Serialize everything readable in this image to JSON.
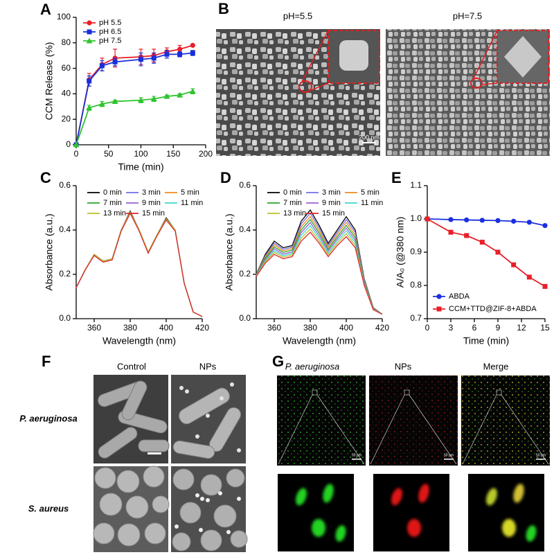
{
  "chart_data": [
    {
      "type": "line",
      "panel": "A",
      "xlabel": "Time (min)",
      "ylabel": "CCM Release (%)",
      "x": [
        0,
        20,
        40,
        60,
        100,
        120,
        140,
        160,
        180
      ],
      "xlim": [
        0,
        200
      ],
      "xticks": [
        0,
        50,
        100,
        150,
        200
      ],
      "ylim": [
        0,
        100
      ],
      "yticks": [
        0,
        20,
        40,
        60,
        80,
        100
      ],
      "legend": "upper left",
      "series": [
        {
          "name": "pH 5.5",
          "color": "#e8202a",
          "marker": "circle",
          "values": [
            0,
            51,
            63,
            68,
            69,
            70,
            73,
            75,
            78
          ],
          "errors": [
            0,
            5,
            5,
            7,
            6,
            5,
            3,
            3,
            0
          ]
        },
        {
          "name": "pH 6.5",
          "color": "#1a2fd8",
          "marker": "square",
          "values": [
            0,
            50,
            62,
            65,
            67,
            68,
            71,
            71,
            72
          ],
          "errors": [
            0,
            4,
            4,
            3,
            5,
            4,
            3,
            2,
            2
          ]
        },
        {
          "name": "pH 7.5",
          "color": "#2fc42f",
          "marker": "triangle",
          "values": [
            0,
            29,
            32,
            34,
            35,
            36,
            38,
            39,
            42
          ],
          "errors": [
            0,
            2,
            2,
            1,
            2,
            2,
            1,
            1,
            2
          ]
        }
      ]
    },
    {
      "type": "line",
      "panel": "C",
      "xlabel": "Wavelength (nm)",
      "ylabel": "Absorbance (a.u.)",
      "x": [
        350,
        355,
        360,
        365,
        370,
        375,
        380,
        385,
        390,
        395,
        400,
        405,
        410,
        415,
        420
      ],
      "xlim": [
        350,
        420
      ],
      "xticks": [
        360,
        380,
        400,
        420
      ],
      "ylim": [
        0,
        0.6
      ],
      "yticks": [
        {
          "value": 0,
          "label": "0.0"
        },
        0.2,
        0.4,
        0.6
      ],
      "legend": "upper center",
      "series": [
        {
          "name": "0 min",
          "color": "#000000",
          "values": [
            0.14,
            0.22,
            0.29,
            0.26,
            0.27,
            0.4,
            0.485,
            0.4,
            0.3,
            0.38,
            0.455,
            0.4,
            0.16,
            0.03,
            0.01
          ]
        },
        {
          "name": "3 min",
          "color": "#6f6fe8",
          "values": [
            0.14,
            0.22,
            0.29,
            0.26,
            0.27,
            0.4,
            0.48,
            0.4,
            0.3,
            0.38,
            0.45,
            0.4,
            0.16,
            0.03,
            0.01
          ]
        },
        {
          "name": "5 min",
          "color": "#f28a1c",
          "values": [
            0.14,
            0.22,
            0.29,
            0.26,
            0.27,
            0.4,
            0.48,
            0.4,
            0.3,
            0.38,
            0.45,
            0.4,
            0.16,
            0.03,
            0.01
          ]
        },
        {
          "name": "7 min",
          "color": "#2aa32a",
          "values": [
            0.14,
            0.22,
            0.29,
            0.26,
            0.27,
            0.4,
            0.48,
            0.4,
            0.3,
            0.38,
            0.45,
            0.4,
            0.16,
            0.03,
            0.01
          ]
        },
        {
          "name": "9 min",
          "color": "#9a5fd0",
          "values": [
            0.14,
            0.22,
            0.29,
            0.26,
            0.27,
            0.4,
            0.48,
            0.4,
            0.3,
            0.38,
            0.45,
            0.4,
            0.16,
            0.03,
            0.01
          ]
        },
        {
          "name": "11 min",
          "color": "#3fd6cf",
          "values": [
            0.14,
            0.22,
            0.29,
            0.26,
            0.27,
            0.4,
            0.48,
            0.4,
            0.3,
            0.38,
            0.45,
            0.4,
            0.16,
            0.03,
            0.01
          ]
        },
        {
          "name": "13 min",
          "color": "#bdbd2a",
          "values": [
            0.14,
            0.22,
            0.29,
            0.26,
            0.27,
            0.4,
            0.48,
            0.4,
            0.3,
            0.38,
            0.45,
            0.4,
            0.16,
            0.03,
            0.01
          ]
        },
        {
          "name": "15 min",
          "color": "#e0262b",
          "values": [
            0.14,
            0.22,
            0.285,
            0.255,
            0.265,
            0.395,
            0.475,
            0.395,
            0.295,
            0.375,
            0.445,
            0.395,
            0.16,
            0.03,
            0.01
          ]
        }
      ]
    },
    {
      "type": "line",
      "panel": "D",
      "xlabel": "Wavelength (nm)",
      "ylabel": "Absorbance (a.u.)",
      "x": [
        350,
        355,
        360,
        365,
        370,
        375,
        380,
        385,
        390,
        395,
        400,
        405,
        410,
        415,
        420
      ],
      "xlim": [
        350,
        420
      ],
      "xticks": [
        360,
        380,
        400,
        420
      ],
      "ylim": [
        0,
        0.6
      ],
      "yticks": [
        {
          "value": 0,
          "label": "0.0"
        },
        0.2,
        0.4,
        0.6
      ],
      "legend": "upper center",
      "series": [
        {
          "name": "0 min",
          "color": "#000000",
          "values": [
            0.2,
            0.29,
            0.35,
            0.32,
            0.33,
            0.44,
            0.49,
            0.42,
            0.34,
            0.4,
            0.46,
            0.4,
            0.18,
            0.05,
            0.02
          ]
        },
        {
          "name": "3 min",
          "color": "#6f6fe8",
          "values": [
            0.199,
            0.284,
            0.341,
            0.313,
            0.323,
            0.427,
            0.476,
            0.409,
            0.331,
            0.39,
            0.447,
            0.389,
            0.176,
            0.049,
            0.02
          ]
        },
        {
          "name": "5 min",
          "color": "#f28a1c",
          "values": [
            0.197,
            0.279,
            0.333,
            0.306,
            0.316,
            0.414,
            0.461,
            0.397,
            0.323,
            0.38,
            0.434,
            0.377,
            0.171,
            0.047,
            0.02
          ]
        },
        {
          "name": "7 min",
          "color": "#2aa32a",
          "values": [
            0.196,
            0.273,
            0.324,
            0.299,
            0.309,
            0.401,
            0.447,
            0.386,
            0.314,
            0.37,
            0.421,
            0.366,
            0.167,
            0.046,
            0.02
          ]
        },
        {
          "name": "9 min",
          "color": "#9a5fd0",
          "values": [
            0.194,
            0.267,
            0.316,
            0.291,
            0.301,
            0.389,
            0.433,
            0.374,
            0.306,
            0.36,
            0.409,
            0.354,
            0.163,
            0.044,
            0.02
          ]
        },
        {
          "name": "11 min",
          "color": "#3fd6cf",
          "values": [
            0.193,
            0.261,
            0.307,
            0.284,
            0.294,
            0.376,
            0.419,
            0.363,
            0.297,
            0.35,
            0.396,
            0.343,
            0.159,
            0.043,
            0.02
          ]
        },
        {
          "name": "13 min",
          "color": "#bdbd2a",
          "values": [
            0.191,
            0.256,
            0.299,
            0.277,
            0.287,
            0.363,
            0.404,
            0.351,
            0.289,
            0.34,
            0.383,
            0.331,
            0.154,
            0.041,
            0.02
          ]
        },
        {
          "name": "15 min",
          "color": "#e0262b",
          "values": [
            0.19,
            0.25,
            0.29,
            0.27,
            0.28,
            0.35,
            0.39,
            0.34,
            0.28,
            0.33,
            0.37,
            0.32,
            0.15,
            0.04,
            0.02
          ]
        }
      ]
    },
    {
      "type": "line",
      "panel": "E",
      "xlabel": "Time (min)",
      "ylabel": "A/A₀ (@380 nm)",
      "x": [
        0,
        3,
        5,
        7,
        9,
        11,
        13,
        15
      ],
      "xlim": [
        0,
        15
      ],
      "xticks": [
        0,
        3,
        6,
        9,
        12,
        15
      ],
      "ylim": [
        0.7,
        1.1
      ],
      "yticks": [
        0.7,
        0.8,
        0.9,
        {
          "value": 1,
          "label": "1.0"
        },
        1.1
      ],
      "legend": "lower left",
      "series": [
        {
          "name": "ABDA",
          "color": "#1a2fe0",
          "marker": "circle",
          "values": [
            1.0,
            0.998,
            0.997,
            0.996,
            0.995,
            0.993,
            0.99,
            0.98
          ]
        },
        {
          "name": "CCM+TTD@ZIF-8+ABDA",
          "color": "#e8202a",
          "marker": "square",
          "values": [
            1.0,
            0.96,
            0.95,
            0.93,
            0.9,
            0.862,
            0.825,
            0.797
          ]
        }
      ]
    }
  ],
  "panels": {
    "B": {
      "letter": "B",
      "left_label": "pH=5.5",
      "right_label": "pH=7.5",
      "scale": "200 nm"
    },
    "F": {
      "letter": "F",
      "columns": [
        "Control",
        "NPs"
      ],
      "rows": [
        "P. aeruginosa",
        "S. aureus"
      ]
    },
    "G": {
      "letter": "G",
      "columns": [
        "P. aeruginosa",
        "NPs",
        "Merge"
      ],
      "scale": "50 μm"
    }
  }
}
